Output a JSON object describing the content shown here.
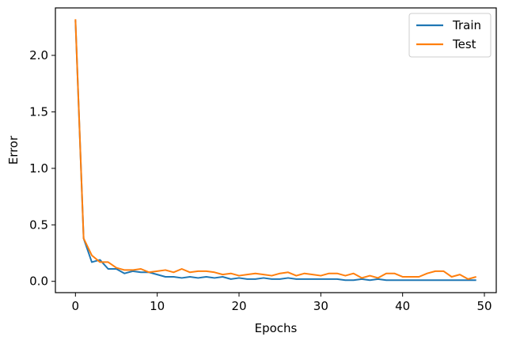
{
  "chart_data": {
    "type": "line",
    "xlabel": "Epochs",
    "ylabel": "Error",
    "xlim": [
      -2.45,
      51.45
    ],
    "ylim": [
      -0.1,
      2.42
    ],
    "xticks": [
      0,
      10,
      20,
      30,
      40,
      50
    ],
    "xtick_labels": [
      "0",
      "10",
      "20",
      "30",
      "40",
      "50"
    ],
    "yticks": [
      0.0,
      0.5,
      1.0,
      1.5,
      2.0
    ],
    "ytick_labels": [
      "0.0",
      "0.5",
      "1.0",
      "1.5",
      "2.0"
    ],
    "grid": false,
    "legend_position": "top-right",
    "x": [
      0,
      1,
      2,
      3,
      4,
      5,
      6,
      7,
      8,
      9,
      10,
      11,
      12,
      13,
      14,
      15,
      16,
      17,
      18,
      19,
      20,
      21,
      22,
      23,
      24,
      25,
      26,
      27,
      28,
      29,
      30,
      31,
      32,
      33,
      34,
      35,
      36,
      37,
      38,
      39,
      40,
      41,
      42,
      43,
      44,
      45,
      46,
      47,
      48,
      49
    ],
    "series": [
      {
        "name": "Train",
        "color": "#1f77b4",
        "values": [
          2.31,
          0.38,
          0.17,
          0.19,
          0.11,
          0.11,
          0.07,
          0.09,
          0.08,
          0.08,
          0.06,
          0.04,
          0.04,
          0.03,
          0.04,
          0.03,
          0.04,
          0.03,
          0.04,
          0.02,
          0.03,
          0.02,
          0.02,
          0.03,
          0.02,
          0.02,
          0.03,
          0.02,
          0.02,
          0.02,
          0.02,
          0.02,
          0.02,
          0.01,
          0.01,
          0.02,
          0.01,
          0.02,
          0.01,
          0.01,
          0.01,
          0.01,
          0.01,
          0.01,
          0.01,
          0.01,
          0.01,
          0.01,
          0.01,
          0.01
        ]
      },
      {
        "name": "Test",
        "color": "#ff7f0e",
        "values": [
          2.32,
          0.38,
          0.23,
          0.17,
          0.17,
          0.12,
          0.1,
          0.1,
          0.11,
          0.08,
          0.09,
          0.1,
          0.08,
          0.11,
          0.08,
          0.09,
          0.09,
          0.08,
          0.06,
          0.07,
          0.05,
          0.06,
          0.07,
          0.06,
          0.05,
          0.07,
          0.08,
          0.05,
          0.07,
          0.06,
          0.05,
          0.07,
          0.07,
          0.05,
          0.07,
          0.03,
          0.05,
          0.03,
          0.07,
          0.07,
          0.04,
          0.04,
          0.04,
          0.07,
          0.09,
          0.09,
          0.04,
          0.06,
          0.02,
          0.04
        ]
      }
    ]
  }
}
